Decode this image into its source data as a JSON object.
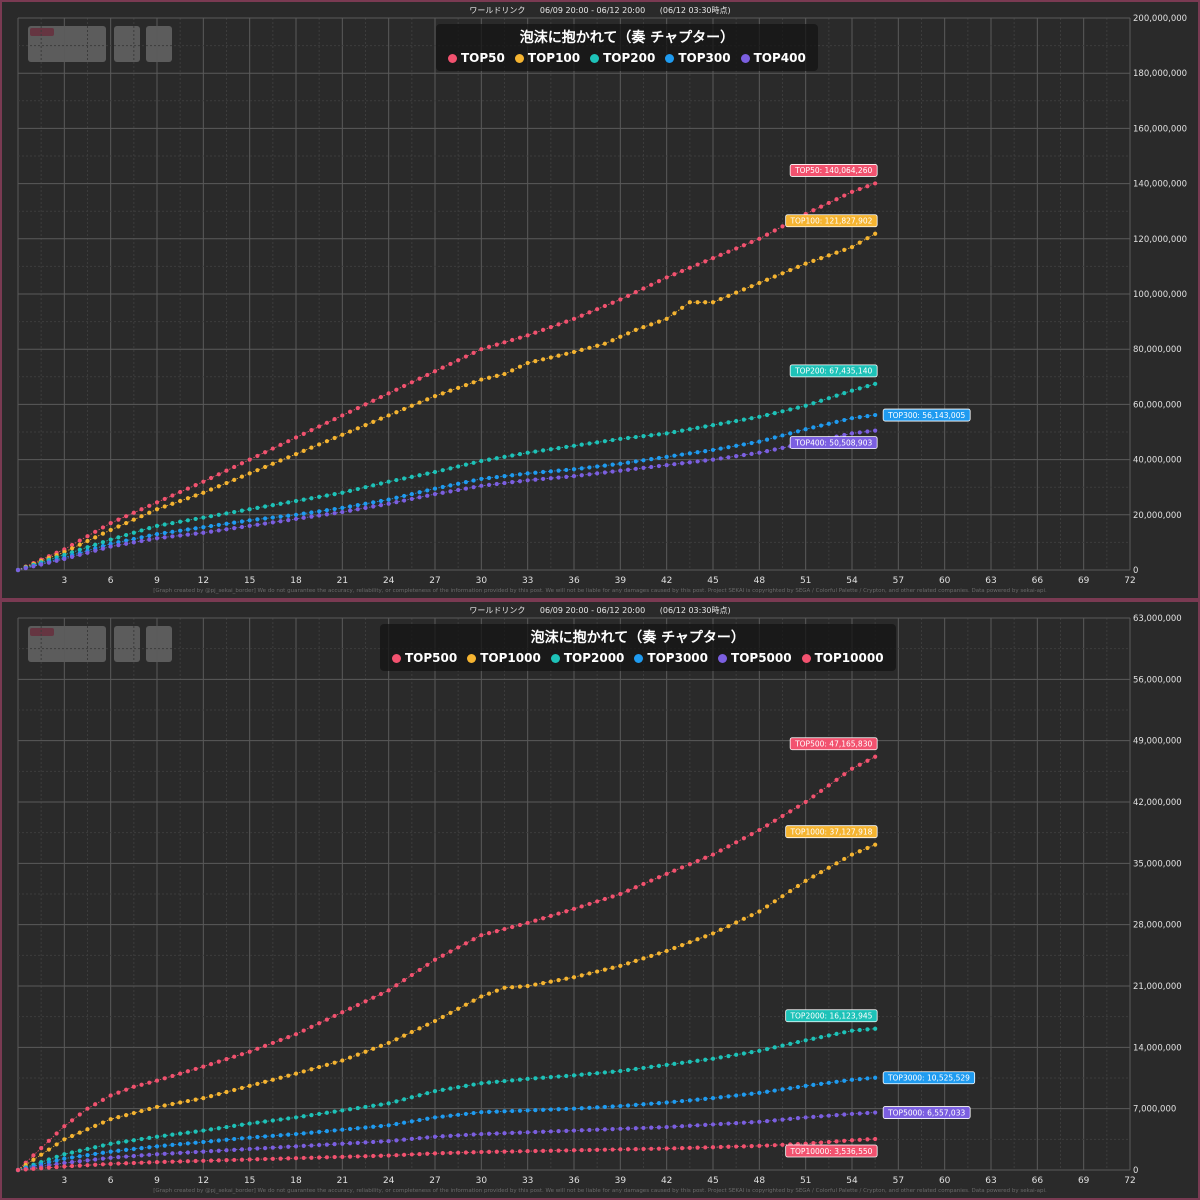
{
  "header": {
    "event_type": "ワールドリンク",
    "period": "06/09 20:00 - 06/12 20:00",
    "as_of": "(06/12 03:30時点)"
  },
  "footer_text": "[Graph created by @pj_sekai_border]  We do not guarantee the accuracy, reliability, or completeness of the information provided by this post. We will not be liable for any damages caused by this post. Project SEKAI is copyrighted by SEGA / Colorful Palette / Crypton, and other related companies. Data powered by sekai-api.",
  "colors": {
    "pink": "#f2526f",
    "orange": "#f5b431",
    "teal": "#1ec2b8",
    "blue": "#1f9bf0",
    "purple": "#7b5fe0"
  },
  "chart_data": [
    {
      "type": "line",
      "title": "泡沫に抱かれて（奏 チャプター）",
      "x_ticks": [
        3,
        6,
        9,
        12,
        15,
        18,
        21,
        24,
        27,
        30,
        33,
        36,
        39,
        42,
        45,
        48,
        51,
        54,
        57,
        60,
        63,
        66,
        69,
        72
      ],
      "xlim": [
        0,
        72
      ],
      "ylim": [
        0,
        200000000
      ],
      "y_ticks": [
        "0",
        "20,000,000",
        "40,000,000",
        "60,000,000",
        "80,000,000",
        "100,000,000",
        "120,000,000",
        "140,000,000",
        "160,000,000",
        "180,000,000",
        "200,000,000"
      ],
      "legend_position": "top-center",
      "series": [
        {
          "name": "TOP50",
          "color": "#f2526f",
          "end_label": "TOP50: 140,064,260",
          "points": [
            [
              0,
              0
            ],
            [
              3,
              7500000
            ],
            [
              6,
              17000000
            ],
            [
              9,
              24500000
            ],
            [
              12,
              32000000
            ],
            [
              15,
              40000000
            ],
            [
              18,
              48000000
            ],
            [
              21,
              56000000
            ],
            [
              24,
              64000000
            ],
            [
              27,
              72000000
            ],
            [
              30,
              80000000
            ],
            [
              33,
              85000000
            ],
            [
              36,
              91000000
            ],
            [
              39,
              98000000
            ],
            [
              42,
              106000000
            ],
            [
              45,
              113000000
            ],
            [
              48,
              120000000
            ],
            [
              51,
              129000000
            ],
            [
              54,
              137000000
            ],
            [
              55.5,
              140064260
            ]
          ]
        },
        {
          "name": "TOP100",
          "color": "#f5b431",
          "end_label": "TOP100: 121,827,902",
          "points": [
            [
              0,
              0
            ],
            [
              3,
              6500000
            ],
            [
              6,
              14500000
            ],
            [
              9,
              22000000
            ],
            [
              12,
              28000000
            ],
            [
              15,
              35000000
            ],
            [
              18,
              42000000
            ],
            [
              21,
              49000000
            ],
            [
              24,
              56000000
            ],
            [
              27,
              63000000
            ],
            [
              30,
              69000000
            ],
            [
              31.5,
              71000000
            ],
            [
              33,
              75000000
            ],
            [
              36,
              79000000
            ],
            [
              38,
              82000000
            ],
            [
              40,
              87000000
            ],
            [
              42,
              91000000
            ],
            [
              43.5,
              97000000
            ],
            [
              45,
              97000000
            ],
            [
              48,
              104000000
            ],
            [
              51,
              111000000
            ],
            [
              54,
              117000000
            ],
            [
              55.5,
              121827902
            ]
          ]
        },
        {
          "name": "TOP200",
          "color": "#1ec2b8",
          "end_label": "TOP200: 67,435,140",
          "points": [
            [
              0,
              0
            ],
            [
              3,
              5500000
            ],
            [
              6,
              11000000
            ],
            [
              9,
              16000000
            ],
            [
              12,
              19000000
            ],
            [
              15,
              22000000
            ],
            [
              18,
              25000000
            ],
            [
              21,
              28000000
            ],
            [
              24,
              32000000
            ],
            [
              27,
              35500000
            ],
            [
              30,
              39500000
            ],
            [
              33,
              42500000
            ],
            [
              36,
              45000000
            ],
            [
              39,
              47500000
            ],
            [
              42,
              49500000
            ],
            [
              45,
              52500000
            ],
            [
              48,
              55500000
            ],
            [
              51,
              59500000
            ],
            [
              54,
              65000000
            ],
            [
              55.5,
              67435140
            ]
          ]
        },
        {
          "name": "TOP300",
          "color": "#1f9bf0",
          "end_label": "TOP300: 56,143,005",
          "points": [
            [
              0,
              0
            ],
            [
              3,
              4500000
            ],
            [
              6,
              9500000
            ],
            [
              9,
              13000000
            ],
            [
              12,
              15500000
            ],
            [
              15,
              18000000
            ],
            [
              18,
              20000000
            ],
            [
              21,
              22500000
            ],
            [
              24,
              25500000
            ],
            [
              27,
              29500000
            ],
            [
              30,
              33000000
            ],
            [
              33,
              35000000
            ],
            [
              36,
              36500000
            ],
            [
              39,
              38500000
            ],
            [
              42,
              41000000
            ],
            [
              45,
              43500000
            ],
            [
              48,
              46500000
            ],
            [
              51,
              51000000
            ],
            [
              54,
              55000000
            ],
            [
              55.5,
              56143005
            ]
          ]
        },
        {
          "name": "TOP400",
          "color": "#7b5fe0",
          "end_label": "TOP400: 50,508,903",
          "points": [
            [
              0,
              0
            ],
            [
              3,
              4000000
            ],
            [
              6,
              8500000
            ],
            [
              9,
              11500000
            ],
            [
              12,
              13500000
            ],
            [
              15,
              16000000
            ],
            [
              18,
              18500000
            ],
            [
              21,
              21000000
            ],
            [
              24,
              24000000
            ],
            [
              27,
              27500000
            ],
            [
              30,
              30500000
            ],
            [
              33,
              32500000
            ],
            [
              36,
              34000000
            ],
            [
              39,
              36000000
            ],
            [
              42,
              38000000
            ],
            [
              45,
              40000000
            ],
            [
              48,
              42500000
            ],
            [
              51,
              46000000
            ],
            [
              54,
              49500000
            ],
            [
              55.5,
              50508903
            ]
          ]
        }
      ]
    },
    {
      "type": "line",
      "title": "泡沫に抱かれて（奏 チャプター）",
      "x_ticks": [
        3,
        6,
        9,
        12,
        15,
        18,
        21,
        24,
        27,
        30,
        33,
        36,
        39,
        42,
        45,
        48,
        51,
        54,
        57,
        60,
        63,
        66,
        69,
        72
      ],
      "xlim": [
        0,
        72
      ],
      "ylim": [
        0,
        63000000
      ],
      "y_ticks": [
        "0",
        "7,000,000",
        "14,000,000",
        "21,000,000",
        "28,000,000",
        "35,000,000",
        "42,000,000",
        "49,000,000",
        "56,000,000",
        "63,000,000"
      ],
      "legend_position": "top-center",
      "series": [
        {
          "name": "TOP500",
          "color": "#f2526f",
          "end_label": "TOP500: 47,165,830",
          "points": [
            [
              0,
              0
            ],
            [
              1.5,
              2500000
            ],
            [
              3,
              5000000
            ],
            [
              4.5,
              7000000
            ],
            [
              6,
              8500000
            ],
            [
              7.5,
              9500000
            ],
            [
              9,
              10200000
            ],
            [
              12,
              11800000
            ],
            [
              15,
              13500000
            ],
            [
              18,
              15500000
            ],
            [
              21,
              18000000
            ],
            [
              24,
              20500000
            ],
            [
              27,
              24000000
            ],
            [
              30,
              26800000
            ],
            [
              33,
              28200000
            ],
            [
              36,
              29800000
            ],
            [
              39,
              31500000
            ],
            [
              42,
              33800000
            ],
            [
              45,
              36000000
            ],
            [
              48,
              38800000
            ],
            [
              51,
              42000000
            ],
            [
              54,
              45800000
            ],
            [
              55.5,
              47165830
            ]
          ]
        },
        {
          "name": "TOP1000",
          "color": "#f5b431",
          "end_label": "TOP1000: 37,127,918",
          "points": [
            [
              0,
              0
            ],
            [
              3,
              3500000
            ],
            [
              6,
              5800000
            ],
            [
              9,
              7200000
            ],
            [
              12,
              8200000
            ],
            [
              15,
              9600000
            ],
            [
              18,
              11000000
            ],
            [
              21,
              12500000
            ],
            [
              24,
              14500000
            ],
            [
              27,
              17000000
            ],
            [
              30,
              19800000
            ],
            [
              31.5,
              20800000
            ],
            [
              33,
              21000000
            ],
            [
              36,
              22000000
            ],
            [
              39,
              23300000
            ],
            [
              42,
              25000000
            ],
            [
              45,
              27000000
            ],
            [
              48,
              29500000
            ],
            [
              51,
              33000000
            ],
            [
              54,
              36000000
            ],
            [
              55.5,
              37127918
            ]
          ]
        },
        {
          "name": "TOP2000",
          "color": "#1ec2b8",
          "end_label": "TOP2000: 16,123,945",
          "points": [
            [
              0,
              0
            ],
            [
              3,
              1800000
            ],
            [
              6,
              3000000
            ],
            [
              9,
              3800000
            ],
            [
              12,
              4500000
            ],
            [
              15,
              5300000
            ],
            [
              18,
              6000000
            ],
            [
              21,
              6800000
            ],
            [
              24,
              7600000
            ],
            [
              27,
              9000000
            ],
            [
              30,
              9900000
            ],
            [
              33,
              10400000
            ],
            [
              36,
              10800000
            ],
            [
              39,
              11300000
            ],
            [
              42,
              12000000
            ],
            [
              45,
              12700000
            ],
            [
              48,
              13600000
            ],
            [
              51,
              14800000
            ],
            [
              54,
              15900000
            ],
            [
              55.5,
              16123945
            ]
          ]
        },
        {
          "name": "TOP3000",
          "color": "#1f9bf0",
          "end_label": "TOP3000: 10,525,529",
          "points": [
            [
              0,
              0
            ],
            [
              3,
              1300000
            ],
            [
              6,
              2100000
            ],
            [
              9,
              2700000
            ],
            [
              12,
              3200000
            ],
            [
              15,
              3700000
            ],
            [
              18,
              4100000
            ],
            [
              21,
              4600000
            ],
            [
              24,
              5100000
            ],
            [
              27,
              6000000
            ],
            [
              30,
              6600000
            ],
            [
              33,
              6800000
            ],
            [
              36,
              7000000
            ],
            [
              39,
              7300000
            ],
            [
              42,
              7700000
            ],
            [
              45,
              8200000
            ],
            [
              48,
              8800000
            ],
            [
              51,
              9600000
            ],
            [
              54,
              10300000
            ],
            [
              55.5,
              10525529
            ]
          ]
        },
        {
          "name": "TOP5000",
          "color": "#7b5fe0",
          "end_label": "TOP5000: 6,557,033",
          "points": [
            [
              0,
              0
            ],
            [
              3,
              800000
            ],
            [
              6,
              1400000
            ],
            [
              9,
              1800000
            ],
            [
              12,
              2100000
            ],
            [
              15,
              2400000
            ],
            [
              18,
              2700000
            ],
            [
              21,
              3000000
            ],
            [
              24,
              3300000
            ],
            [
              27,
              3800000
            ],
            [
              30,
              4100000
            ],
            [
              33,
              4300000
            ],
            [
              36,
              4500000
            ],
            [
              39,
              4700000
            ],
            [
              42,
              4900000
            ],
            [
              45,
              5200000
            ],
            [
              48,
              5500000
            ],
            [
              51,
              6000000
            ],
            [
              54,
              6400000
            ],
            [
              55.5,
              6557033
            ]
          ]
        },
        {
          "name": "TOP10000",
          "color": "#f2526f",
          "end_label": "TOP10000: 3,536,550",
          "points": [
            [
              0,
              0
            ],
            [
              3,
              400000
            ],
            [
              6,
              700000
            ],
            [
              9,
              900000
            ],
            [
              12,
              1050000
            ],
            [
              15,
              1200000
            ],
            [
              18,
              1350000
            ],
            [
              21,
              1500000
            ],
            [
              24,
              1650000
            ],
            [
              27,
              1900000
            ],
            [
              30,
              2050000
            ],
            [
              33,
              2150000
            ],
            [
              36,
              2250000
            ],
            [
              39,
              2350000
            ],
            [
              42,
              2450000
            ],
            [
              45,
              2600000
            ],
            [
              48,
              2750000
            ],
            [
              51,
              3000000
            ],
            [
              54,
              3400000
            ],
            [
              55.5,
              3536550
            ]
          ]
        }
      ]
    }
  ]
}
